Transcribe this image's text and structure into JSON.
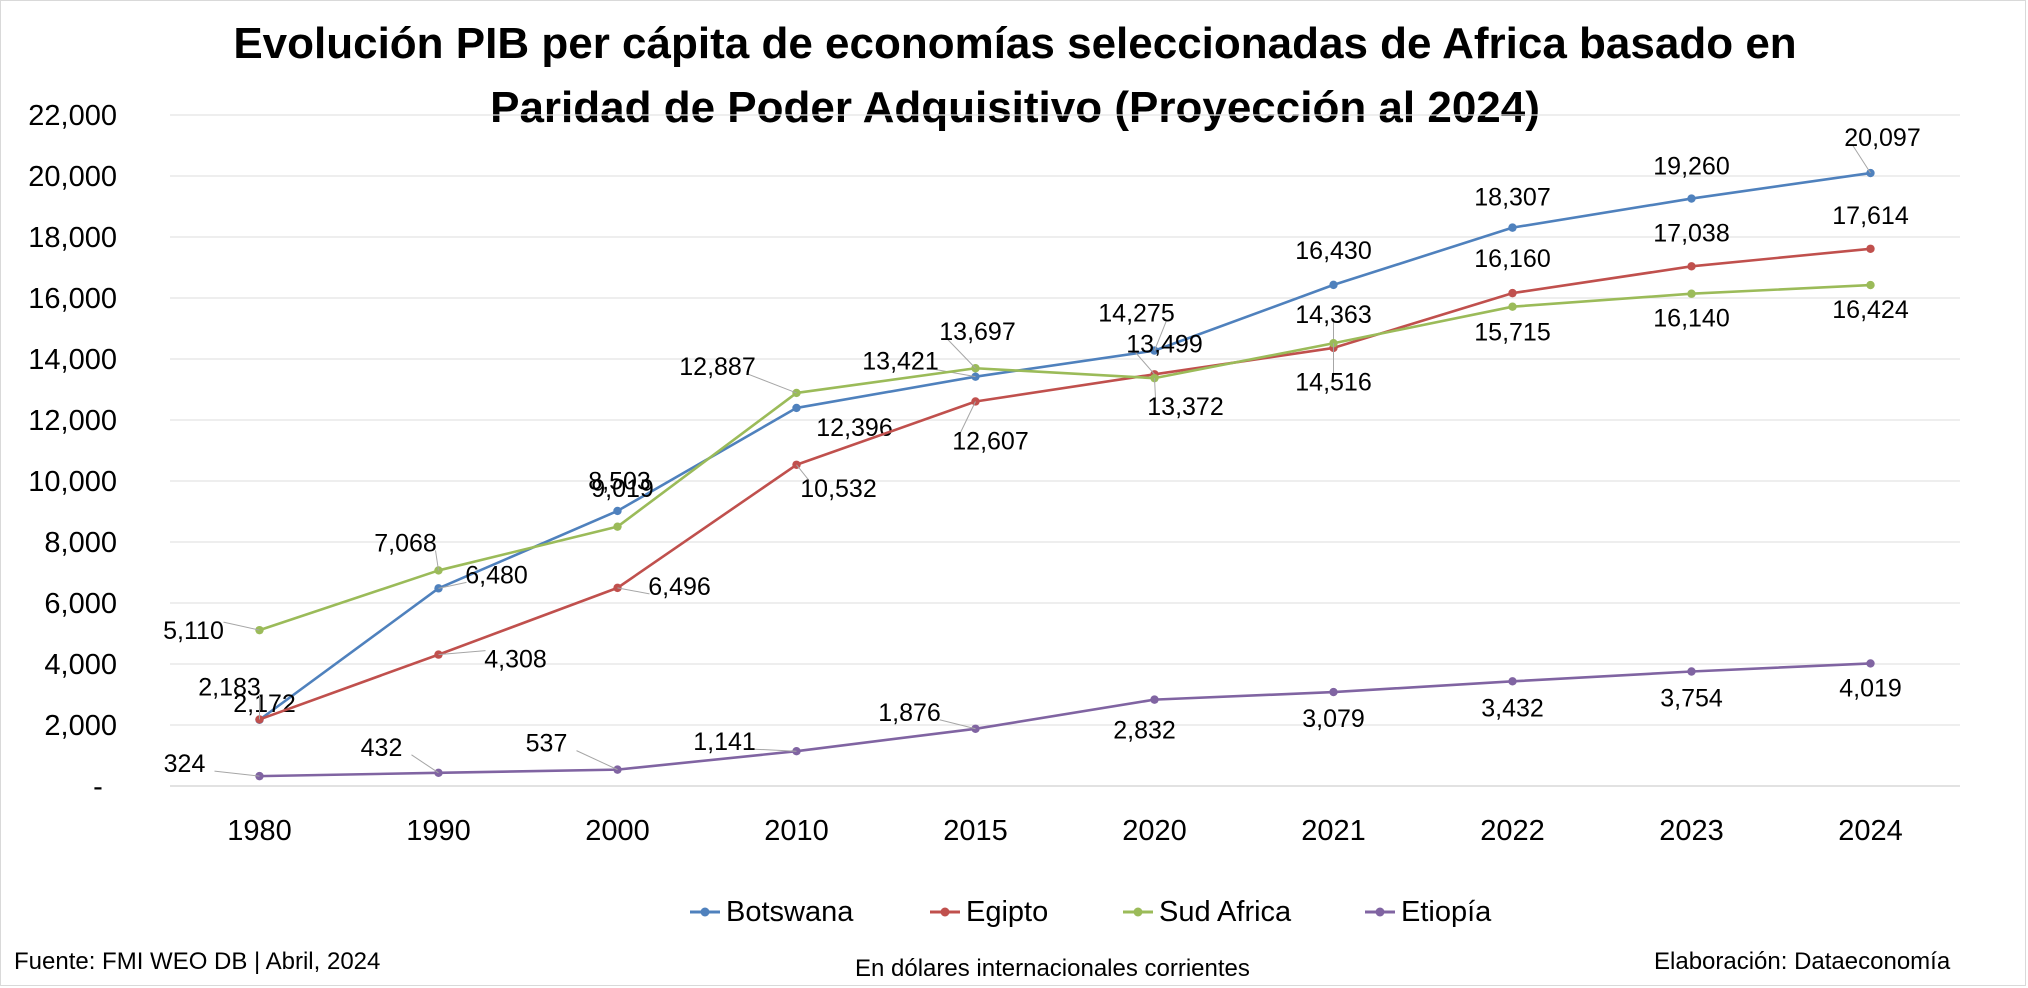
{
  "title_line1": "Evolución PIB per cápita de economías seleccionadas de Africa basado en",
  "title_line2": "Paridad de Poder Adquisitivo (Proyección al 2024)",
  "footer": {
    "source": "Fuente: FMI WEO DB | Abril, 2024",
    "units": "En dólares internacionales corrientes",
    "credit": "Elaboración: Dataeconomía"
  },
  "chart_data": {
    "type": "line",
    "categories": [
      "1980",
      "1990",
      "2000",
      "2010",
      "2015",
      "2020",
      "2021",
      "2022",
      "2023",
      "2024"
    ],
    "ylim": [
      0,
      22000
    ],
    "yticks": [
      0,
      2000,
      4000,
      6000,
      8000,
      10000,
      12000,
      14000,
      16000,
      18000,
      20000,
      22000
    ],
    "ytick_labels": [
      "-",
      "2,000",
      "4,000",
      "6,000",
      "8,000",
      "10,000",
      "12,000",
      "14,000",
      "16,000",
      "18,000",
      "20,000",
      "22,000"
    ],
    "grid": true,
    "legend_position": "bottom",
    "series": [
      {
        "name": "Botswana",
        "color": "#4f81bd",
        "values": [
          2172,
          6480,
          9019,
          12396,
          13421,
          14275,
          16430,
          18307,
          19260,
          20097
        ],
        "labels": [
          "2,172",
          "6,480",
          "9,019",
          "12,396",
          "13,421",
          "14,275",
          "16,430",
          "18,307",
          "19,260",
          "20,097"
        ]
      },
      {
        "name": "Egipto",
        "color": "#c0504d",
        "values": [
          2183,
          4308,
          6496,
          10532,
          12607,
          13499,
          14363,
          16160,
          17038,
          17614
        ],
        "labels": [
          "2,183",
          "4,308",
          "6,496",
          "10,532",
          "12,607",
          "13,499",
          "14,363",
          "16,160",
          "17,038",
          "17,614"
        ]
      },
      {
        "name": "Sud Africa",
        "color": "#9bbb59",
        "values": [
          5110,
          7068,
          8503,
          12887,
          13697,
          13372,
          14516,
          15715,
          16140,
          16424
        ],
        "labels": [
          "5,110",
          "7,068",
          "8,503",
          "12,887",
          "13,697",
          "13,372",
          "14,516",
          "15,715",
          "16,140",
          "16,424"
        ]
      },
      {
        "name": "Etiopía",
        "color": "#8064a2",
        "values": [
          324,
          432,
          537,
          1141,
          1876,
          2832,
          3079,
          3432,
          3754,
          4019
        ],
        "labels": [
          "324",
          "432",
          "537",
          "1,141",
          "1,876",
          "2,832",
          "3,079",
          "3,432",
          "3,754",
          "4,019"
        ]
      }
    ]
  }
}
